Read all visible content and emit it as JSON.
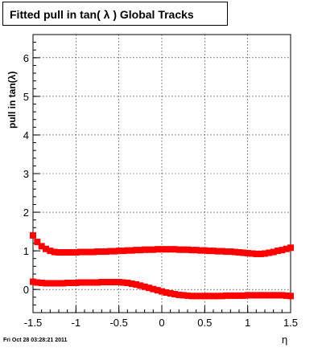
{
  "chart_data": {
    "type": "scatter",
    "title": "Fitted pull in tan( λ )  Global Tracks",
    "ylabel": "pull in tan(λ)",
    "xlabel": "η",
    "xlim": [
      -1.5,
      1.5
    ],
    "ylim": [
      -0.6,
      6.6
    ],
    "xticks": [
      "-1.5",
      "-1",
      "-0.5",
      "0",
      "0.5",
      "1",
      "1.5"
    ],
    "yticks": [
      "0",
      "1",
      "2",
      "3",
      "4",
      "5",
      "6"
    ],
    "grid": true,
    "marker_color": "#ff0000",
    "series": [
      {
        "x": [
          -1.5,
          -1.45,
          -1.4,
          -1.35,
          -1.3,
          -1.25,
          -1.2,
          -1.15,
          -1.1,
          -1.05,
          -1.0,
          -0.95,
          -0.9,
          -0.85,
          -0.8,
          -0.75,
          -0.7,
          -0.65,
          -0.6,
          -0.55,
          -0.5,
          -0.45,
          -0.4,
          -0.35,
          -0.3,
          -0.25,
          -0.2,
          -0.15,
          -0.1,
          -0.05,
          0.0,
          0.05,
          0.1,
          0.15,
          0.2,
          0.25,
          0.3,
          0.35,
          0.4,
          0.45,
          0.5,
          0.55,
          0.6,
          0.65,
          0.7,
          0.75,
          0.8,
          0.85,
          0.9,
          0.95,
          1.0,
          1.05,
          1.1,
          1.15,
          1.2,
          1.25,
          1.3,
          1.35,
          1.4,
          1.45,
          1.5
        ],
        "values": [
          1.4,
          1.23,
          1.12,
          1.05,
          1.0,
          0.97,
          0.96,
          0.96,
          0.96,
          0.96,
          0.96,
          0.97,
          0.97,
          0.97,
          0.97,
          0.98,
          0.98,
          0.98,
          0.99,
          0.99,
          1.0,
          1.0,
          1.01,
          1.01,
          1.02,
          1.02,
          1.03,
          1.03,
          1.03,
          1.04,
          1.04,
          1.04,
          1.04,
          1.04,
          1.03,
          1.03,
          1.03,
          1.02,
          1.02,
          1.01,
          1.01,
          1.0,
          1.0,
          0.99,
          0.99,
          0.98,
          0.98,
          0.97,
          0.96,
          0.95,
          0.94,
          0.93,
          0.92,
          0.92,
          0.93,
          0.95,
          0.97,
          1.0,
          1.02,
          1.05,
          1.08
        ]
      },
      {
        "x": [
          -1.5,
          -1.45,
          -1.4,
          -1.35,
          -1.3,
          -1.25,
          -1.2,
          -1.15,
          -1.1,
          -1.05,
          -1.0,
          -0.95,
          -0.9,
          -0.85,
          -0.8,
          -0.75,
          -0.7,
          -0.65,
          -0.6,
          -0.55,
          -0.5,
          -0.45,
          -0.4,
          -0.35,
          -0.3,
          -0.25,
          -0.2,
          -0.15,
          -0.1,
          -0.05,
          0.0,
          0.05,
          0.1,
          0.15,
          0.2,
          0.25,
          0.3,
          0.35,
          0.4,
          0.45,
          0.5,
          0.55,
          0.6,
          0.65,
          0.7,
          0.75,
          0.8,
          0.85,
          0.9,
          0.95,
          1.0,
          1.05,
          1.1,
          1.15,
          1.2,
          1.25,
          1.3,
          1.35,
          1.4,
          1.45,
          1.5
        ],
        "values": [
          0.2,
          0.18,
          0.17,
          0.16,
          0.16,
          0.16,
          0.16,
          0.16,
          0.17,
          0.17,
          0.17,
          0.18,
          0.18,
          0.18,
          0.18,
          0.18,
          0.19,
          0.19,
          0.19,
          0.19,
          0.19,
          0.18,
          0.17,
          0.15,
          0.13,
          0.1,
          0.07,
          0.04,
          0.01,
          -0.02,
          -0.05,
          -0.08,
          -0.1,
          -0.12,
          -0.14,
          -0.15,
          -0.16,
          -0.17,
          -0.17,
          -0.17,
          -0.17,
          -0.17,
          -0.17,
          -0.17,
          -0.17,
          -0.16,
          -0.16,
          -0.16,
          -0.16,
          -0.16,
          -0.15,
          -0.15,
          -0.15,
          -0.15,
          -0.15,
          -0.15,
          -0.15,
          -0.15,
          -0.15,
          -0.16,
          -0.17
        ]
      }
    ]
  },
  "footer": {
    "datestamp": "Fri Oct 28 03:28:21 2011"
  }
}
